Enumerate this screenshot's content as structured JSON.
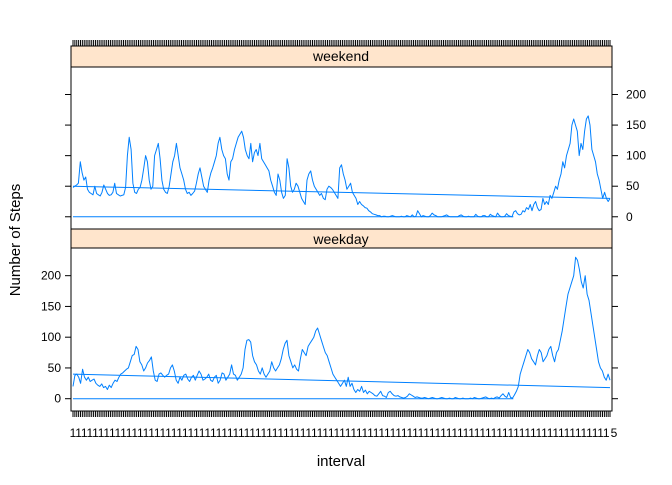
{
  "chart_data": {
    "type": "line",
    "xlabel": "interval",
    "ylabel": "Number of Steps",
    "y_ticks": [
      0,
      50,
      100,
      150,
      200
    ],
    "ylim": [
      -20,
      245
    ],
    "x_range": [
      0,
      287
    ],
    "x_tick_label_sample": "1",
    "x_tick_label_end": "5",
    "panels": [
      {
        "strip": "weekend",
        "y_axis_side": "right",
        "series": {
          "values": [
            48,
            50,
            52,
            55,
            90,
            72,
            60,
            65,
            45,
            40,
            38,
            36,
            50,
            38,
            36,
            34,
            40,
            52,
            45,
            38,
            35,
            36,
            40,
            55,
            38,
            36,
            34,
            35,
            36,
            48,
            100,
            130,
            110,
            55,
            40,
            38,
            45,
            48,
            60,
            80,
            100,
            90,
            60,
            45,
            50,
            100,
            110,
            120,
            95,
            60,
            45,
            40,
            38,
            50,
            70,
            90,
            100,
            120,
            100,
            80,
            70,
            60,
            45,
            38,
            40,
            35,
            38,
            42,
            55,
            70,
            80,
            65,
            50,
            45,
            40,
            60,
            72,
            80,
            90,
            100,
            120,
            130,
            110,
            100,
            95,
            70,
            60,
            90,
            95,
            110,
            120,
            130,
            135,
            140,
            130,
            110,
            100,
            95,
            120,
            90,
            105,
            110,
            100,
            120,
            95,
            90,
            85,
            80,
            75,
            60,
            50,
            40,
            35,
            70,
            60,
            40,
            30,
            35,
            95,
            80,
            50,
            40,
            45,
            55,
            50,
            40,
            30,
            25,
            20,
            60,
            70,
            75,
            60,
            50,
            45,
            40,
            35,
            38,
            30,
            28,
            45,
            50,
            48,
            45,
            40,
            35,
            30,
            80,
            85,
            70,
            60,
            45,
            50,
            55,
            40,
            35,
            30,
            20,
            25,
            20,
            18,
            15,
            14,
            10,
            8,
            5,
            4,
            3,
            2,
            2,
            0,
            1,
            1,
            0,
            0,
            1,
            2,
            1,
            0,
            0,
            0,
            1,
            0,
            0,
            2,
            1,
            0,
            3,
            0,
            1,
            10,
            5,
            0,
            2,
            1,
            0,
            0,
            2,
            6,
            3,
            2,
            0,
            0,
            0,
            1,
            2,
            3,
            1,
            0,
            0,
            0,
            0,
            0,
            2,
            3,
            1,
            0,
            0,
            1,
            0,
            0,
            0,
            4,
            1,
            0,
            0,
            2,
            2,
            0,
            0,
            4,
            2,
            1,
            0,
            6,
            2,
            0,
            0,
            1,
            5,
            2,
            1,
            0,
            8,
            10,
            5,
            3,
            4,
            10,
            8,
            15,
            12,
            20,
            10,
            20,
            25,
            15,
            10,
            12,
            30,
            20,
            25,
            20,
            35,
            30,
            40,
            50,
            45,
            60,
            70,
            90,
            80,
            100,
            110,
            120,
            150,
            160,
            150,
            140,
            100,
            120,
            110,
            140,
            160,
            165,
            150,
            110,
            100,
            90,
            70,
            60,
            45,
            30,
            40,
            30,
            25,
            30
          ],
          "fit": [
            50,
            30
          ],
          "baseline": [
            0,
            0
          ]
        }
      },
      {
        "strip": "weekday",
        "y_axis_side": "left",
        "series": {
          "values": [
            20,
            38,
            40,
            35,
            25,
            48,
            35,
            30,
            35,
            28,
            30,
            32,
            25,
            22,
            20,
            24,
            18,
            20,
            15,
            22,
            18,
            25,
            30,
            28,
            35,
            40,
            42,
            45,
            48,
            50,
            60,
            70,
            72,
            85,
            80,
            60,
            55,
            45,
            50,
            58,
            62,
            68,
            45,
            30,
            28,
            40,
            42,
            38,
            35,
            38,
            40,
            50,
            55,
            45,
            30,
            25,
            35,
            30,
            38,
            40,
            32,
            28,
            35,
            38,
            30,
            38,
            45,
            40,
            30,
            32,
            35,
            40,
            30,
            28,
            35,
            38,
            25,
            30,
            42,
            40,
            30,
            35,
            40,
            55,
            40,
            38,
            30,
            35,
            40,
            50,
            80,
            95,
            96,
            92,
            70,
            60,
            55,
            45,
            40,
            50,
            40,
            35,
            40,
            45,
            60,
            50,
            45,
            50,
            55,
            65,
            80,
            90,
            95,
            70,
            60,
            50,
            55,
            48,
            45,
            65,
            80,
            75,
            70,
            85,
            90,
            95,
            100,
            110,
            115,
            105,
            95,
            85,
            75,
            70,
            60,
            50,
            40,
            35,
            30,
            25,
            20,
            25,
            30,
            20,
            35,
            20,
            25,
            15,
            10,
            15,
            12,
            20,
            10,
            14,
            8,
            12,
            10,
            8,
            5,
            4,
            8,
            12,
            5,
            4,
            2,
            10,
            12,
            8,
            5,
            4,
            5,
            3,
            2,
            1,
            2,
            4,
            8,
            6,
            4,
            2,
            3,
            2,
            1,
            1,
            2,
            1,
            0,
            1,
            2,
            1,
            0,
            0,
            1,
            2,
            1,
            0,
            0,
            1,
            0,
            0,
            2,
            1,
            0,
            0,
            1,
            0,
            0,
            0,
            1,
            0,
            2,
            1,
            0,
            0,
            1,
            2,
            3,
            1,
            0,
            1,
            0,
            2,
            3,
            1,
            5,
            8,
            4,
            2,
            10,
            2,
            1,
            6,
            12,
            20,
            40,
            50,
            60,
            70,
            80,
            75,
            65,
            60,
            55,
            70,
            80,
            75,
            60,
            65,
            70,
            80,
            85,
            70,
            60,
            75,
            80,
            95,
            110,
            130,
            150,
            170,
            180,
            190,
            200,
            230,
            225,
            210,
            190,
            180,
            200,
            170,
            160,
            140,
            120,
            100,
            80,
            60,
            50,
            45,
            35,
            30,
            40,
            30
          ],
          "fit": [
            40,
            18
          ],
          "baseline": [
            0,
            0
          ]
        }
      }
    ]
  }
}
